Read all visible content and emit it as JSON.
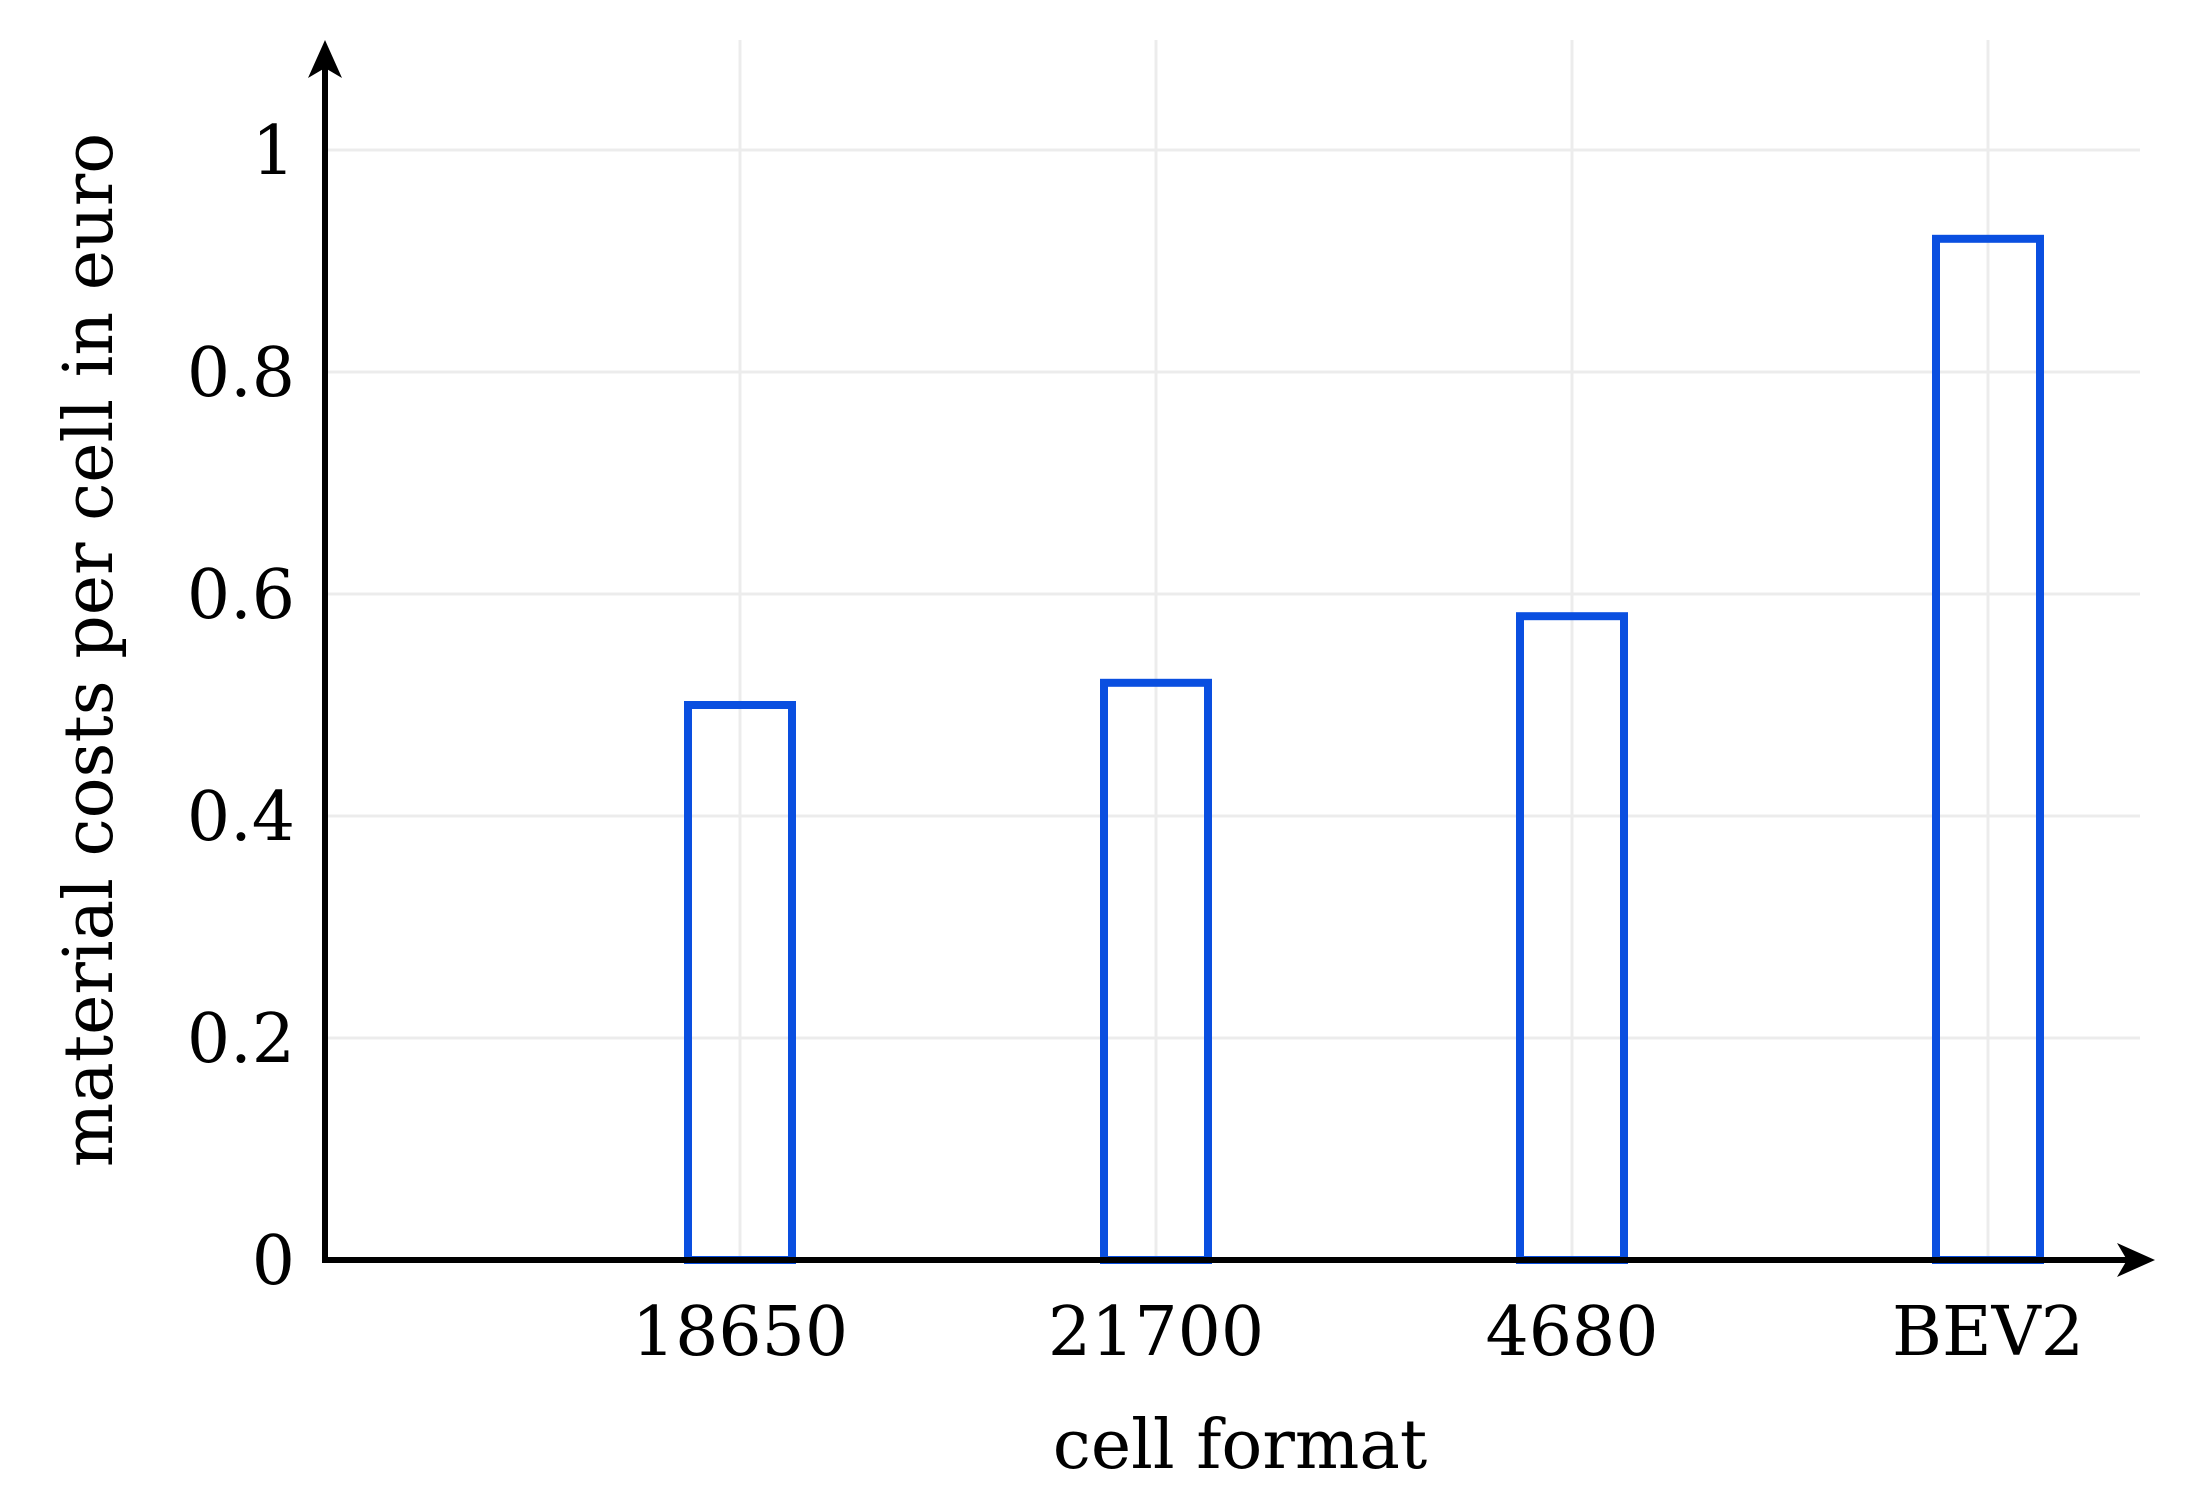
{
  "chart_data": {
    "type": "bar",
    "title": "",
    "xlabel": "cell format",
    "ylabel": "material costs per cell in euro",
    "categories": [
      "18650",
      "21700",
      "4680",
      "BEV2"
    ],
    "series": [
      {
        "values": [
          0.5,
          0.52,
          0.58,
          0.92
        ]
      }
    ],
    "ylim": [
      0,
      1.1
    ],
    "yticks": [
      "0",
      "0.2",
      "0.4",
      "0.6",
      "0.8",
      "1"
    ],
    "ytick_values": [
      0,
      0.2,
      0.4,
      0.6,
      0.8,
      1
    ],
    "grid": true,
    "bar_fill": "none",
    "colors": {
      "bar_stroke": "#0a4fe0",
      "grid": "#ececec",
      "axis": "#000000"
    }
  }
}
